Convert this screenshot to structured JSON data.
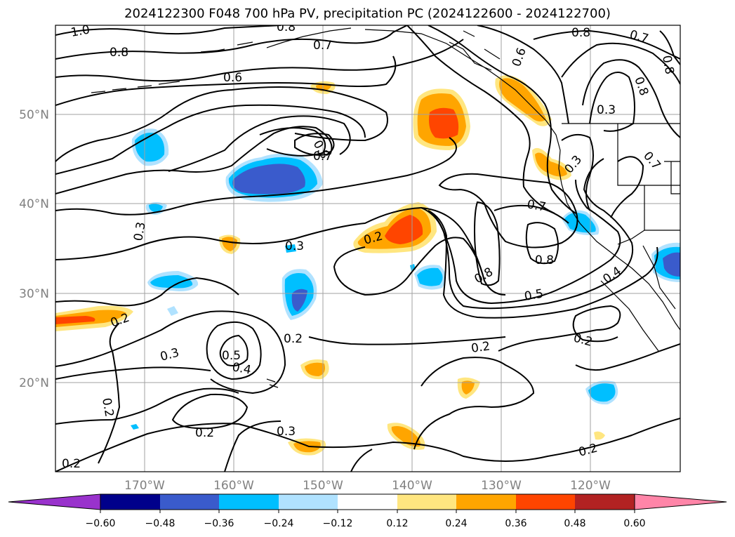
{
  "title": "2024122300 F048 700 hPa PV, precipitation PC (2024122600 - 2024122700)",
  "axes": {
    "lat_ticks": [
      "50°N",
      "40°N",
      "30°N",
      "20°N"
    ],
    "lon_ticks": [
      "170°W",
      "160°W",
      "150°W",
      "140°W",
      "130°W",
      "120°W"
    ]
  },
  "contour_labels": [
    "1.0",
    "0.8",
    "0.7",
    "0.6",
    "0.8",
    "0.7",
    "0.6",
    "0.8",
    "0.8",
    "0.7",
    "0.3",
    "0.3",
    "0.7",
    "0.3",
    "0.2",
    "0.8",
    "0.8",
    "0.5",
    "0.4",
    "0.3",
    "0.2",
    "0.2",
    "0.3",
    "0.5",
    "0.4",
    "0.2",
    "0.2",
    "0.2",
    "0.3",
    "0.2",
    "0.2",
    "0.2",
    "0.8",
    "0.7",
    "0.8"
  ],
  "colorbar": {
    "ticks": [
      "−0.60",
      "−0.48",
      "−0.36",
      "−0.24",
      "−0.12",
      "0.12",
      "0.24",
      "0.36",
      "0.48",
      "0.60"
    ],
    "colors": [
      "#9932cc",
      "#00008b",
      "#3a5bcc",
      "#00bfff",
      "#b0e2ff",
      "#ffffff",
      "#ffe680",
      "#ffa500",
      "#ff4500",
      "#b22222",
      "#ff85a8"
    ]
  },
  "fill_colors": {
    "pos_light": "#ffe680",
    "pos_mid": "#ffa500",
    "pos_high": "#ff4500",
    "neg_light": "#b0e2ff",
    "neg_mid": "#00bfff",
    "neg_high": "#3a5bcc"
  }
}
